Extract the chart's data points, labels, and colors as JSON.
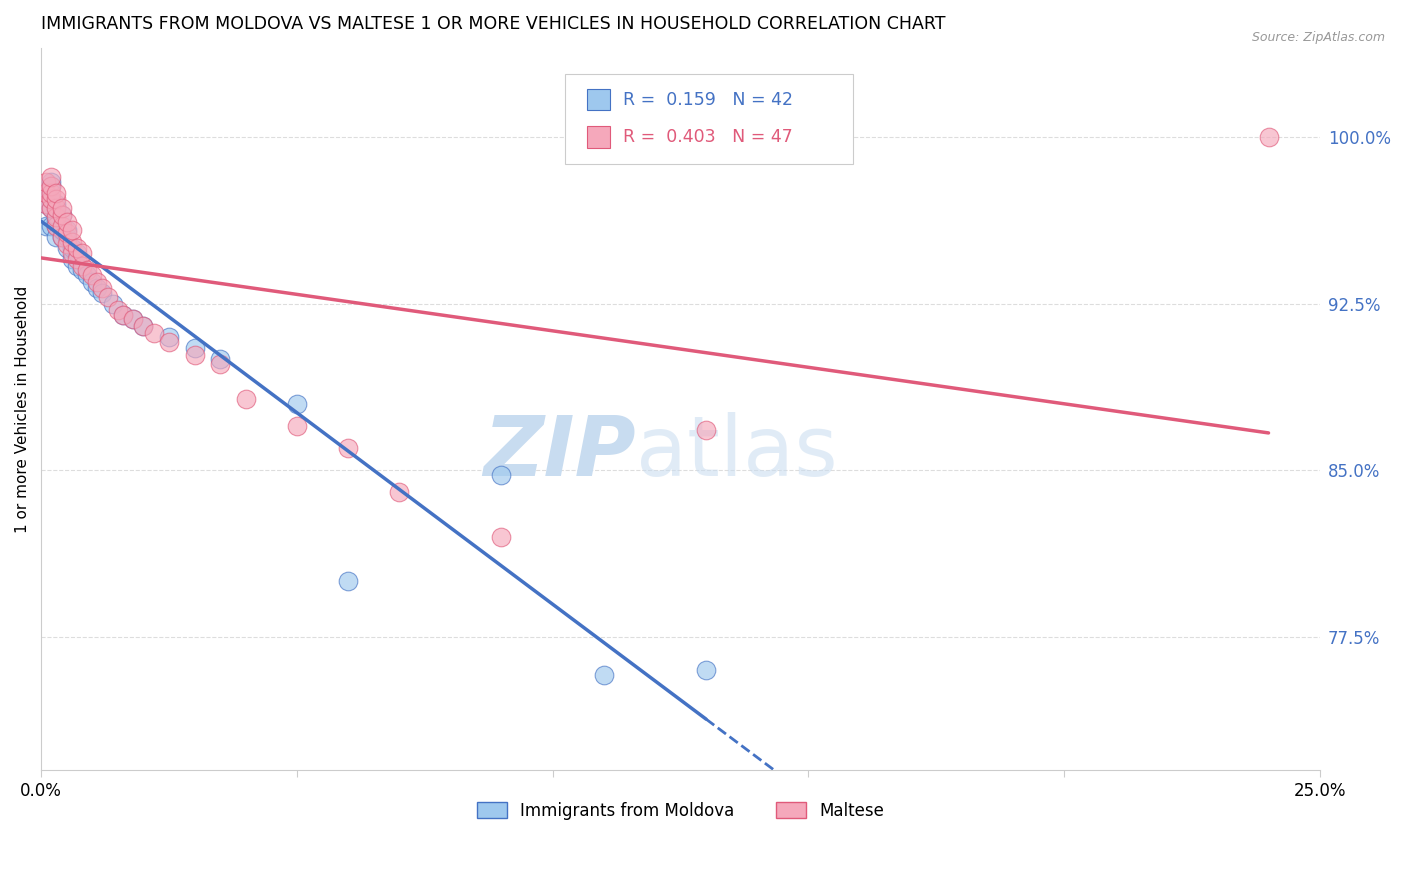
{
  "title": "IMMIGRANTS FROM MOLDOVA VS MALTESE 1 OR MORE VEHICLES IN HOUSEHOLD CORRELATION CHART",
  "source": "Source: ZipAtlas.com",
  "ylabel": "1 or more Vehicles in Household",
  "ytick_labels": [
    "100.0%",
    "92.5%",
    "85.0%",
    "77.5%"
  ],
  "ytick_values": [
    1.0,
    0.925,
    0.85,
    0.775
  ],
  "xlim": [
    0.0,
    0.25
  ],
  "ylim": [
    0.715,
    1.04
  ],
  "legend_moldova": "Immigrants from Moldova",
  "legend_maltese": "Maltese",
  "r_moldova": 0.159,
  "n_moldova": 42,
  "r_maltese": 0.403,
  "n_maltese": 47,
  "color_moldova": "#9EC8EE",
  "color_maltese": "#F5A8BB",
  "color_moldova_line": "#4472C4",
  "color_maltese_line": "#E05A7A",
  "moldova_x": [
    0.001,
    0.001,
    0.001,
    0.002,
    0.002,
    0.002,
    0.002,
    0.002,
    0.003,
    0.003,
    0.003,
    0.003,
    0.003,
    0.003,
    0.004,
    0.004,
    0.004,
    0.004,
    0.005,
    0.005,
    0.005,
    0.006,
    0.006,
    0.007,
    0.007,
    0.008,
    0.009,
    0.01,
    0.011,
    0.012,
    0.014,
    0.016,
    0.018,
    0.02,
    0.025,
    0.03,
    0.035,
    0.05,
    0.06,
    0.09,
    0.11,
    0.13
  ],
  "moldova_y": [
    0.96,
    0.97,
    0.975,
    0.96,
    0.968,
    0.972,
    0.978,
    0.98,
    0.96,
    0.962,
    0.965,
    0.968,
    0.955,
    0.97,
    0.955,
    0.958,
    0.96,
    0.965,
    0.95,
    0.955,
    0.958,
    0.945,
    0.95,
    0.942,
    0.948,
    0.94,
    0.938,
    0.935,
    0.932,
    0.93,
    0.925,
    0.92,
    0.918,
    0.915,
    0.91,
    0.905,
    0.9,
    0.88,
    0.8,
    0.848,
    0.758,
    0.76
  ],
  "maltese_x": [
    0.001,
    0.001,
    0.001,
    0.002,
    0.002,
    0.002,
    0.002,
    0.002,
    0.003,
    0.003,
    0.003,
    0.003,
    0.003,
    0.004,
    0.004,
    0.004,
    0.004,
    0.005,
    0.005,
    0.005,
    0.006,
    0.006,
    0.006,
    0.007,
    0.007,
    0.008,
    0.008,
    0.009,
    0.01,
    0.011,
    0.012,
    0.013,
    0.015,
    0.016,
    0.018,
    0.02,
    0.022,
    0.025,
    0.03,
    0.035,
    0.04,
    0.05,
    0.06,
    0.07,
    0.09,
    0.13,
    0.24
  ],
  "maltese_y": [
    0.97,
    0.975,
    0.98,
    0.968,
    0.972,
    0.975,
    0.978,
    0.982,
    0.96,
    0.964,
    0.968,
    0.972,
    0.975,
    0.955,
    0.96,
    0.965,
    0.968,
    0.952,
    0.957,
    0.962,
    0.948,
    0.953,
    0.958,
    0.945,
    0.95,
    0.942,
    0.948,
    0.94,
    0.938,
    0.935,
    0.932,
    0.928,
    0.922,
    0.92,
    0.918,
    0.915,
    0.912,
    0.908,
    0.902,
    0.898,
    0.882,
    0.87,
    0.86,
    0.84,
    0.82,
    0.868,
    1.0
  ],
  "background_color": "#ffffff",
  "grid_color": "#dddddd"
}
